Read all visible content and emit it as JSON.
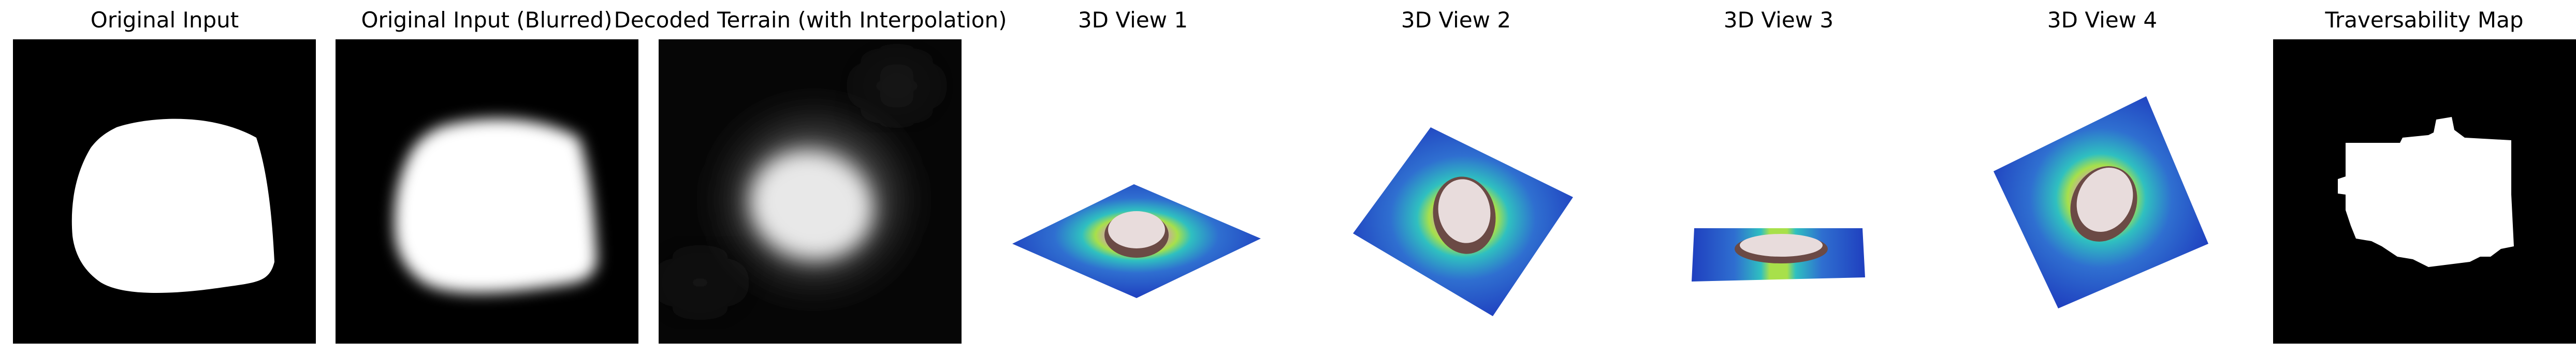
{
  "figure": {
    "panels": [
      {
        "title": "Original Input"
      },
      {
        "title": "Original Input (Blurred)"
      },
      {
        "title": "Decoded Terrain (with Interpolation)"
      },
      {
        "title": "3D View 1"
      },
      {
        "title": "3D View 2"
      },
      {
        "title": "3D View 3"
      },
      {
        "title": "3D View 4"
      },
      {
        "title": "Traversability Map"
      }
    ]
  },
  "colors": {
    "background": "#000000",
    "blob": "#ffffff",
    "terrain_low": "#1f3fbf",
    "terrain_mid": "#2f9fd0",
    "terrain_ring": "#a8e04a",
    "terrain_peak": "#f2e9ea"
  }
}
